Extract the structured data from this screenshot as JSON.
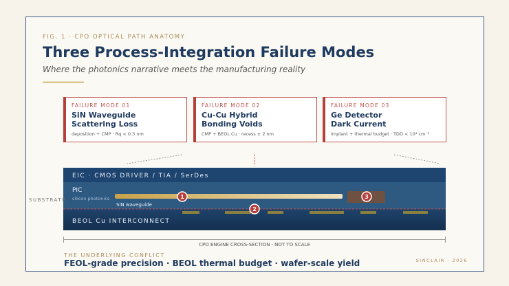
{
  "header": {
    "figure_label": "FIG. 1 · CPO OPTICAL PATH ANATOMY",
    "title": "Three Process-Integration Failure Modes",
    "subtitle": "Where the photonics narrative meets the manufacturing reality"
  },
  "cards": [
    {
      "label": "FAILURE MODE 01",
      "title_lines": [
        "SiN Waveguide",
        "Scattering Loss"
      ],
      "note": "deposition + CMP · Rq < 0.3 nm"
    },
    {
      "label": "FAILURE MODE 02",
      "title_lines": [
        "Cu-Cu Hybrid",
        "Bonding Voids"
      ],
      "note": "CMP + BEOL Cu · recess ± 2 nm"
    },
    {
      "label": "FAILURE MODE 03",
      "title_lines": [
        "Ge Detector",
        "Dark Current"
      ],
      "note": "implant + thermal budget · TDD < 10⁴ cm⁻²"
    }
  ],
  "cross_section": {
    "eic_label": "EIC · CMOS DRIVER / TIA / SerDes",
    "pic_label": "PIC",
    "pic_sublabel": "silicon photonics",
    "waveguide_label": "SiN waveguide",
    "beol_label": "BEOL Cu INTERCONNECT",
    "substrate_label": "SUBSTRATE",
    "markers": [
      "1",
      "2",
      "3"
    ],
    "caption": "CPO ENGINE CROSS-SECTION · NOT TO SCALE"
  },
  "footer": {
    "conflict_label": "THE UNDERLYING CONFLICT",
    "statement": "FEOL-grade precision · BEOL thermal budget · wafer-scale yield",
    "credit": "SINCLAIR · 2026"
  }
}
